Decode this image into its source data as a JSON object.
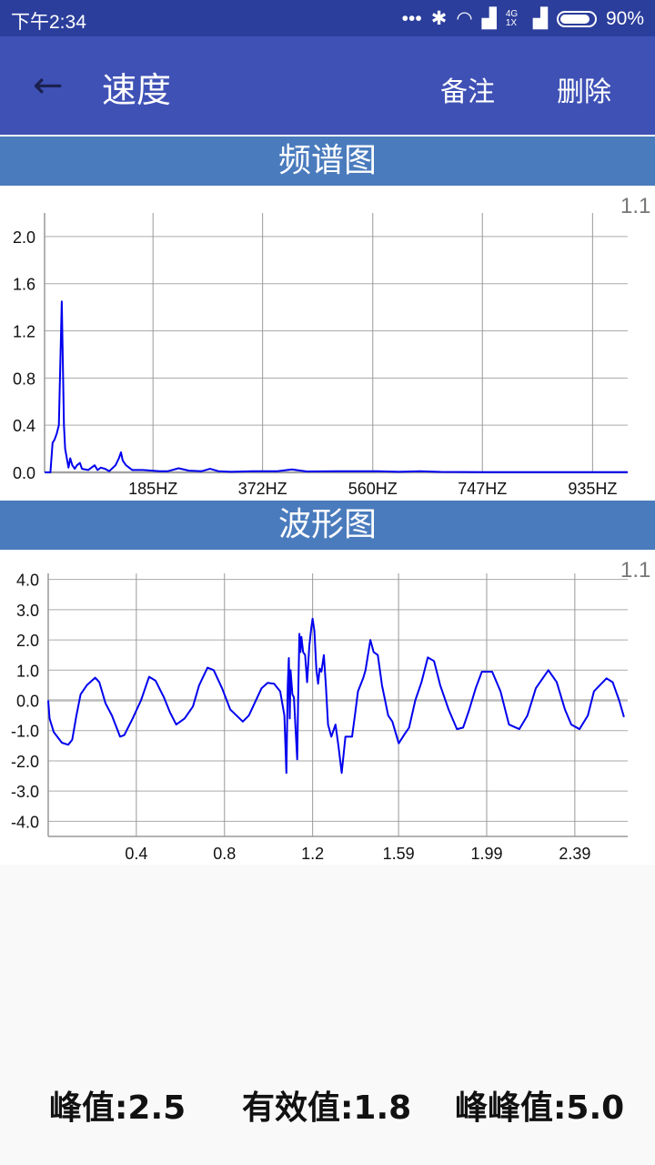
{
  "status_bar": {
    "time": "下午2:34",
    "network": "4G 1X",
    "battery_percent": 90,
    "battery_label": "90%",
    "icons": [
      "more-dots-icon",
      "bluetooth-icon",
      "wifi-icon",
      "signal-icon",
      "signal-icon",
      "battery-icon"
    ]
  },
  "app_bar": {
    "title": "速度",
    "back_icon": "arrow-left-icon",
    "actions": [
      "备注",
      "删除"
    ]
  },
  "spectrum": {
    "header": "频谱图",
    "corner_label": "1.1",
    "chart_data": {
      "type": "line",
      "color": "#0000ee",
      "xlim": [
        0,
        995
      ],
      "ylim": [
        0,
        2.2
      ],
      "grid": true,
      "xticks": [
        185,
        372,
        560,
        747,
        935
      ],
      "xtick_labels": [
        "185HZ",
        "372HZ",
        "560HZ",
        "747HZ",
        "935HZ"
      ],
      "yticks": [
        0,
        0.4,
        0.8,
        1.2,
        1.6,
        2.0
      ],
      "ytick_labels": [
        "0.0",
        "0.4",
        "0.8",
        "1.2",
        "1.6",
        "2.0"
      ],
      "x": [
        0,
        9,
        10,
        13.6,
        17.2,
        20.8,
        24.4,
        29.4,
        33,
        35.1,
        38.7,
        40.8,
        43.7,
        47.3,
        51.6,
        55.2,
        60.2,
        63.8,
        74.5,
        85.3,
        90.3,
        96,
        103.2,
        110.3,
        121.1,
        126.8,
        130.4,
        133.3,
        139,
        149.7,
        167.7,
        196.3,
        210.7,
        228.6,
        246.5,
        268,
        282.3,
        296.6,
        318.1,
        354,
        397,
        422,
        447,
        497,
        569,
        605,
        641,
        676,
        748,
        995
      ],
      "y": [
        0,
        0,
        0,
        0.25,
        0.28,
        0.33,
        0.4,
        1.45,
        0.4,
        0.2,
        0.1,
        0.04,
        0.12,
        0.06,
        0.03,
        0.06,
        0.08,
        0.03,
        0.02,
        0.06,
        0.02,
        0.04,
        0.03,
        0.01,
        0.06,
        0.12,
        0.17,
        0.1,
        0.06,
        0.02,
        0.02,
        0.01,
        0.01,
        0.035,
        0.015,
        0.01,
        0.03,
        0.01,
        0.005,
        0.01,
        0.01,
        0.025,
        0.008,
        0.01,
        0.01,
        0.005,
        0.01,
        0.004,
        0.002,
        0.002
      ]
    }
  },
  "waveform": {
    "header": "波形图",
    "corner_label": "1.1",
    "chart_data": {
      "type": "line",
      "color": "#0000ee",
      "xlim": [
        0,
        2.63
      ],
      "ylim": [
        -4.5,
        4.2
      ],
      "grid": true,
      "xticks": [
        0.4,
        0.8,
        1.2,
        1.59,
        1.99,
        2.39
      ],
      "xtick_labels": [
        "0.4",
        "0.8",
        "1.2",
        "1.59",
        "1.99",
        "2.39"
      ],
      "yticks": [
        4,
        3,
        2,
        1,
        0,
        -1,
        -2,
        -3,
        -4
      ],
      "ytick_labels": [
        "4.0",
        "3.0",
        "2.0",
        "1.0",
        "0.0",
        "-1.0",
        "-2.0",
        "-3.0",
        "-4.0"
      ],
      "x": [
        0,
        0.006,
        0.025,
        0.062,
        0.091,
        0.109,
        0.128,
        0.147,
        0.175,
        0.213,
        0.232,
        0.26,
        0.289,
        0.326,
        0.345,
        0.383,
        0.421,
        0.458,
        0.487,
        0.525,
        0.553,
        0.581,
        0.619,
        0.657,
        0.685,
        0.723,
        0.751,
        0.789,
        0.826,
        0.883,
        0.911,
        0.968,
        0.996,
        1.025,
        1.053,
        1.072,
        1.081,
        1.087,
        1.092,
        1.096,
        1.1,
        1.108,
        1.115,
        1.123,
        1.13,
        1.134,
        1.14,
        1.145,
        1.149,
        1.157,
        1.166,
        1.175,
        1.185,
        1.194,
        1.2,
        1.208,
        1.217,
        1.225,
        1.232,
        1.24,
        1.251,
        1.26,
        1.27,
        1.285,
        1.304,
        1.317,
        1.332,
        1.349,
        1.379,
        1.392,
        1.406,
        1.43,
        1.44,
        1.462,
        1.477,
        1.496,
        1.515,
        1.543,
        1.562,
        1.591,
        1.619,
        1.638,
        1.666,
        1.694,
        1.723,
        1.751,
        1.779,
        1.817,
        1.855,
        1.883,
        1.911,
        1.94,
        1.968,
        2.015,
        2.053,
        2.091,
        2.138,
        2.175,
        2.213,
        2.27,
        2.308,
        2.345,
        2.374,
        2.411,
        2.449,
        2.477,
        2.534,
        2.562,
        2.591,
        2.613
      ],
      "y": [
        0,
        -0.6,
        -1.05,
        -1.4,
        -1.47,
        -1.3,
        -0.5,
        0.2,
        0.5,
        0.75,
        0.6,
        -0.1,
        -0.5,
        -1.2,
        -1.15,
        -0.6,
        0,
        0.78,
        0.65,
        0.1,
        -0.4,
        -0.8,
        -0.6,
        -0.2,
        0.5,
        1.08,
        1.0,
        0.4,
        -0.3,
        -0.7,
        -0.5,
        0.4,
        0.58,
        0.55,
        0.3,
        -0.5,
        -2.4,
        0.5,
        1.4,
        -0.6,
        1.0,
        0.2,
        0.1,
        -1.0,
        -1.95,
        0,
        2.2,
        1.6,
        2.1,
        1.6,
        1.5,
        0.6,
        1.8,
        2.4,
        2.7,
        2.3,
        1.0,
        0.55,
        1.05,
        0.95,
        1.5,
        0.5,
        -0.8,
        -1.2,
        -0.8,
        -1.5,
        -2.4,
        -1.2,
        -1.2,
        -0.5,
        0.3,
        0.75,
        1.0,
        2.0,
        1.6,
        1.5,
        0.5,
        -0.5,
        -0.7,
        -1.42,
        -1.1,
        -0.9,
        0,
        0.6,
        1.42,
        1.3,
        0.5,
        -0.3,
        -0.95,
        -0.9,
        -0.3,
        0.4,
        0.95,
        0.95,
        0.3,
        -0.8,
        -0.95,
        -0.5,
        0.4,
        1.0,
        0.6,
        -0.3,
        -0.8,
        -0.95,
        -0.5,
        0.3,
        0.73,
        0.6,
        0,
        -0.55
      ]
    }
  },
  "stats": {
    "peak": "峰值:2.5",
    "rms": "有效值:1.8",
    "peak_to_peak": "峰峰值:5.0"
  }
}
